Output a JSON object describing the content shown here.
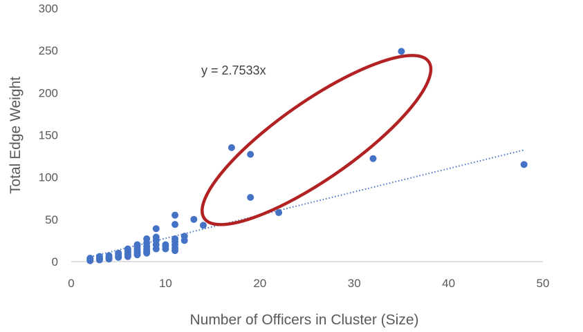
{
  "chart_data": {
    "type": "scatter",
    "title": "",
    "xlabel": "Number of Officers in Cluster (Size)",
    "ylabel": "Total Edge Weight",
    "xlim": [
      0,
      50
    ],
    "ylim": [
      0,
      300
    ],
    "x_ticks": [
      0,
      10,
      20,
      30,
      40,
      50
    ],
    "y_ticks": [
      0,
      50,
      100,
      150,
      200,
      250,
      300
    ],
    "grid": false,
    "legend": "none",
    "colors": {
      "points": "#4472C4",
      "trendline": "#4472C4",
      "highlight": "#B22222",
      "text": "#595959",
      "axis": "#BFBFBF"
    },
    "trendline": {
      "equation": "y = 2.7533x",
      "slope": 2.7533,
      "x_range": [
        2,
        48
      ],
      "style": "dotted"
    },
    "highlight_ellipse": {
      "center": [
        26,
        144
      ],
      "description_points": [
        [
          17,
          135
        ],
        [
          19,
          127
        ],
        [
          35,
          249
        ]
      ]
    },
    "series": [
      {
        "points": [
          [
            2,
            1
          ],
          [
            2,
            2
          ],
          [
            2,
            3
          ],
          [
            2,
            4
          ],
          [
            3,
            2
          ],
          [
            3,
            3
          ],
          [
            3,
            4
          ],
          [
            3,
            6
          ],
          [
            4,
            3
          ],
          [
            4,
            4
          ],
          [
            4,
            5
          ],
          [
            4,
            7
          ],
          [
            5,
            5
          ],
          [
            5,
            6
          ],
          [
            5,
            8
          ],
          [
            5,
            10
          ],
          [
            6,
            6
          ],
          [
            6,
            8
          ],
          [
            6,
            10
          ],
          [
            6,
            12
          ],
          [
            6,
            15
          ],
          [
            7,
            8
          ],
          [
            7,
            10
          ],
          [
            7,
            12
          ],
          [
            7,
            15
          ],
          [
            7,
            18
          ],
          [
            7,
            20
          ],
          [
            8,
            10
          ],
          [
            8,
            12
          ],
          [
            8,
            15
          ],
          [
            8,
            18
          ],
          [
            8,
            22
          ],
          [
            8,
            27
          ],
          [
            9,
            15
          ],
          [
            9,
            20
          ],
          [
            9,
            25
          ],
          [
            9,
            29
          ],
          [
            9,
            39
          ],
          [
            10,
            15
          ],
          [
            10,
            18
          ],
          [
            10,
            20
          ],
          [
            11,
            13
          ],
          [
            11,
            16
          ],
          [
            11,
            20
          ],
          [
            11,
            24
          ],
          [
            11,
            27
          ],
          [
            11,
            44
          ],
          [
            11,
            55
          ],
          [
            12,
            25
          ],
          [
            12,
            30
          ],
          [
            13,
            50
          ],
          [
            14,
            43
          ],
          [
            17,
            135
          ],
          [
            19,
            127
          ],
          [
            19,
            76
          ],
          [
            22,
            58
          ],
          [
            32,
            122
          ],
          [
            35,
            249
          ],
          [
            48,
            115
          ]
        ]
      }
    ]
  }
}
